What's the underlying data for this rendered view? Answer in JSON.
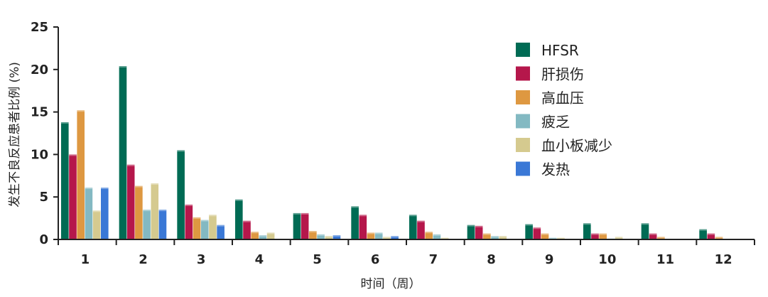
{
  "chart_data": {
    "type": "bar",
    "title": "",
    "xlabel": "时间（周）",
    "ylabel": "发生不良反应患者比例 (%)",
    "ylim": [
      0,
      25
    ],
    "yticks": [
      0,
      5,
      10,
      15,
      20,
      25
    ],
    "grid": false,
    "legend_position": "top-right",
    "categories": [
      "1",
      "2",
      "3",
      "4",
      "5",
      "6",
      "7",
      "8",
      "9",
      "10",
      "11",
      "12"
    ],
    "series": [
      {
        "name": "HFSR",
        "color": "#006b54",
        "values": [
          13.8,
          20.4,
          10.5,
          4.7,
          3.1,
          3.9,
          2.9,
          1.7,
          1.8,
          1.9,
          1.9,
          1.2
        ]
      },
      {
        "name": "肝损伤",
        "color": "#b5174b",
        "values": [
          10.0,
          8.8,
          4.1,
          2.2,
          3.1,
          2.9,
          2.2,
          1.6,
          1.4,
          0.7,
          0.7,
          0.7
        ]
      },
      {
        "name": "高血压",
        "color": "#de9841",
        "values": [
          15.2,
          6.3,
          2.6,
          0.9,
          1.0,
          0.8,
          0.9,
          0.7,
          0.7,
          0.7,
          0.3,
          0.3
        ]
      },
      {
        "name": "疲乏",
        "color": "#83b9c2",
        "values": [
          6.1,
          3.5,
          2.3,
          0.5,
          0.6,
          0.8,
          0.6,
          0.4,
          0.2,
          0.1,
          0.0,
          0.0
        ]
      },
      {
        "name": "血小板减少",
        "color": "#d5ca8f",
        "values": [
          3.4,
          6.6,
          2.9,
          0.8,
          0.4,
          0.3,
          0.2,
          0.4,
          0.2,
          0.3,
          0.0,
          0.0
        ]
      },
      {
        "name": "发热",
        "color": "#3a78d6",
        "values": [
          6.1,
          3.5,
          1.7,
          0.0,
          0.5,
          0.4,
          0.0,
          0.0,
          0.0,
          0.0,
          0.0,
          0.0
        ]
      }
    ]
  }
}
